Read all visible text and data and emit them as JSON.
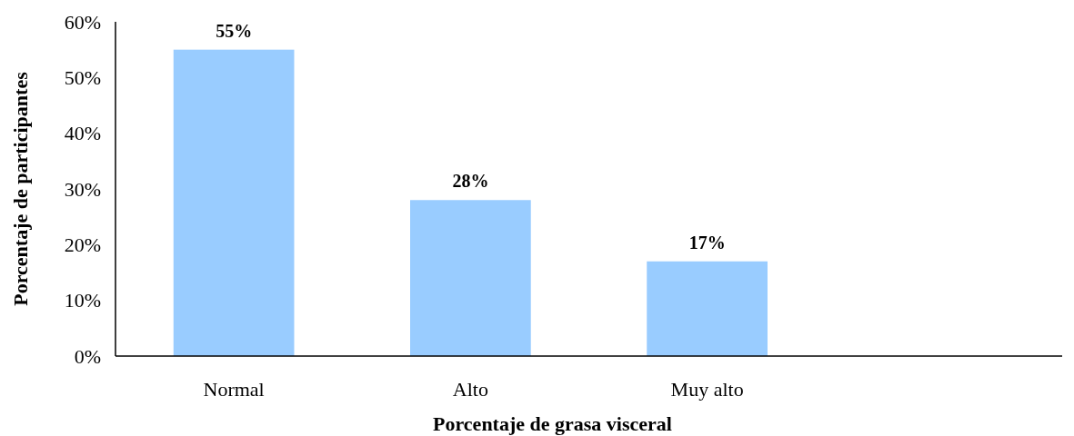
{
  "chart_data": {
    "type": "bar",
    "xlabel": "Porcentaje de grasa visceral",
    "ylabel": "Porcentaje de participantes",
    "categories": [
      "Normal",
      "Alto",
      "Muy alto",
      null
    ],
    "values": [
      55,
      28,
      17,
      null
    ],
    "value_labels": [
      "55%",
      "28%",
      "17%",
      null
    ],
    "color": "#99ccff",
    "ylim": [
      0,
      60
    ],
    "yticks": [
      {
        "value": 0,
        "label": "0%"
      },
      {
        "value": 10,
        "label": "10%"
      },
      {
        "value": 20,
        "label": "20%"
      },
      {
        "value": 30,
        "label": "30%"
      },
      {
        "value": 40,
        "label": "40%"
      },
      {
        "value": 50,
        "label": "50%"
      },
      {
        "value": 60,
        "label": "60%"
      }
    ],
    "grid": false
  }
}
